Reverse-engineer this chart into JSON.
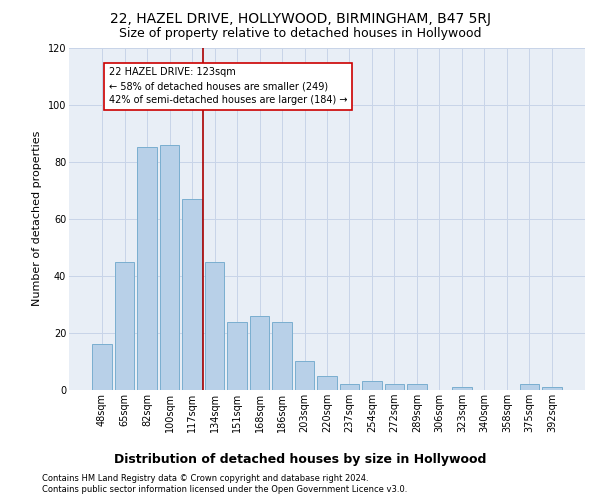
{
  "title": "22, HAZEL DRIVE, HOLLYWOOD, BIRMINGHAM, B47 5RJ",
  "subtitle": "Size of property relative to detached houses in Hollywood",
  "xlabel_bottom": "Distribution of detached houses by size in Hollywood",
  "ylabel": "Number of detached properties",
  "footer_line1": "Contains HM Land Registry data © Crown copyright and database right 2024.",
  "footer_line2": "Contains public sector information licensed under the Open Government Licence v3.0.",
  "bar_labels": [
    "48sqm",
    "65sqm",
    "82sqm",
    "100sqm",
    "117sqm",
    "134sqm",
    "151sqm",
    "168sqm",
    "186sqm",
    "203sqm",
    "220sqm",
    "237sqm",
    "254sqm",
    "272sqm",
    "289sqm",
    "306sqm",
    "323sqm",
    "340sqm",
    "358sqm",
    "375sqm",
    "392sqm"
  ],
  "bar_values": [
    16,
    45,
    85,
    86,
    67,
    45,
    24,
    26,
    24,
    10,
    5,
    2,
    3,
    2,
    2,
    0,
    1,
    0,
    0,
    2,
    1
  ],
  "bar_color": "#b8d0e8",
  "bar_edgecolor": "#7aaed0",
  "vline_color": "#aa0000",
  "annotation_text": "22 HAZEL DRIVE: 123sqm\n← 58% of detached houses are smaller (249)\n42% of semi-detached houses are larger (184) →",
  "annotation_box_edgecolor": "#cc0000",
  "annotation_box_facecolor": "#ffffff",
  "ylim": [
    0,
    120
  ],
  "yticks": [
    0,
    20,
    40,
    60,
    80,
    100,
    120
  ],
  "grid_color": "#c8d4e8",
  "bg_color": "#e8eef6",
  "title_fontsize": 10,
  "subtitle_fontsize": 9,
  "tick_fontsize": 7,
  "ylabel_fontsize": 8,
  "annotation_fontsize": 7,
  "footer_fontsize": 6,
  "xlabel_bottom_fontsize": 9
}
